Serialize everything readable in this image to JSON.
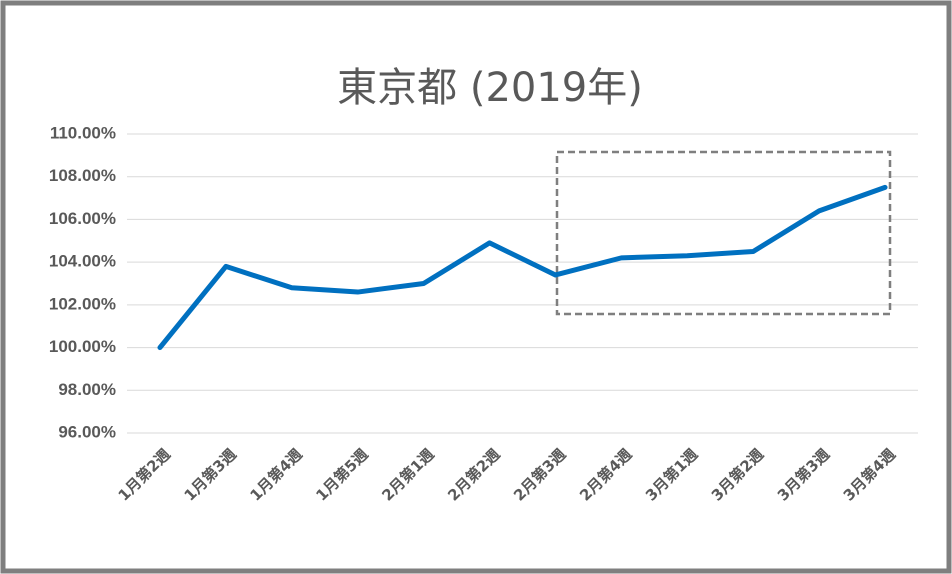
{
  "chart_data": {
    "type": "line",
    "title": "東京都 (2019年)",
    "categories": [
      "1月第2週",
      "1月第3週",
      "1月第4週",
      "1月第5週",
      "2月第1週",
      "2月第2週",
      "2月第3週",
      "2月第4週",
      "3月第1週",
      "3月第2週",
      "3月第3週",
      "3月第4週"
    ],
    "series": [
      {
        "name": "東京都",
        "color": "#0070c0",
        "values": [
          100,
          103.8,
          102.8,
          102.6,
          103.0,
          104.9,
          103.4,
          104.2,
          104.3,
          104.5,
          106.4,
          107.5
        ]
      }
    ],
    "ylim": [
      96,
      110
    ],
    "yticks": [
      {
        "value": 96,
        "label": "96.00%"
      },
      {
        "value": 98,
        "label": "98.00%"
      },
      {
        "value": 100,
        "label": "100.00%"
      },
      {
        "value": 102,
        "label": "102.00%"
      },
      {
        "value": 104,
        "label": "104.00%"
      },
      {
        "value": 106,
        "label": "106.00%"
      },
      {
        "value": 108,
        "label": "108.00%"
      },
      {
        "value": 110,
        "label": "110.00%"
      }
    ],
    "grid": true
  }
}
